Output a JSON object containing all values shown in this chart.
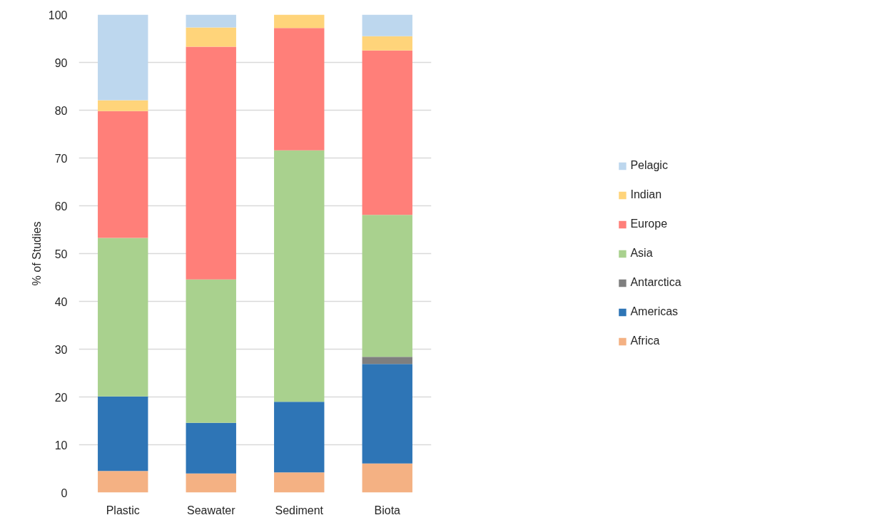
{
  "chart_data": {
    "type": "bar",
    "stacked": true,
    "categories": [
      "Plastic",
      "Seawater",
      "Sediment",
      "Biota"
    ],
    "ylabel": "% of Studies",
    "ylim": [
      0,
      100
    ],
    "yticks": [
      0,
      10,
      20,
      30,
      40,
      50,
      60,
      70,
      80,
      90,
      100
    ],
    "grid": "y",
    "legend": "right",
    "series": [
      {
        "name": "Africa",
        "color": "#f4b183",
        "values": [
          4.5,
          4.0,
          4.2,
          6.1
        ]
      },
      {
        "name": "Americas",
        "color": "#2e75b6",
        "values": [
          15.6,
          10.6,
          14.8,
          20.8
        ]
      },
      {
        "name": "Antarctica",
        "color": "#7f7f7f",
        "values": [
          0,
          0,
          0,
          1.5
        ]
      },
      {
        "name": "Asia",
        "color": "#a9d18e",
        "values": [
          33.2,
          30.0,
          52.6,
          29.7
        ]
      },
      {
        "name": "Europe",
        "color": "#ff7f79",
        "values": [
          26.5,
          48.7,
          25.6,
          34.4
        ]
      },
      {
        "name": "Indian",
        "color": "#ffd47a",
        "values": [
          2.3,
          4.0,
          2.8,
          3.0
        ]
      },
      {
        "name": "Pelagic",
        "color": "#bdd7ee",
        "values": [
          17.9,
          2.7,
          0,
          4.5
        ]
      }
    ]
  }
}
